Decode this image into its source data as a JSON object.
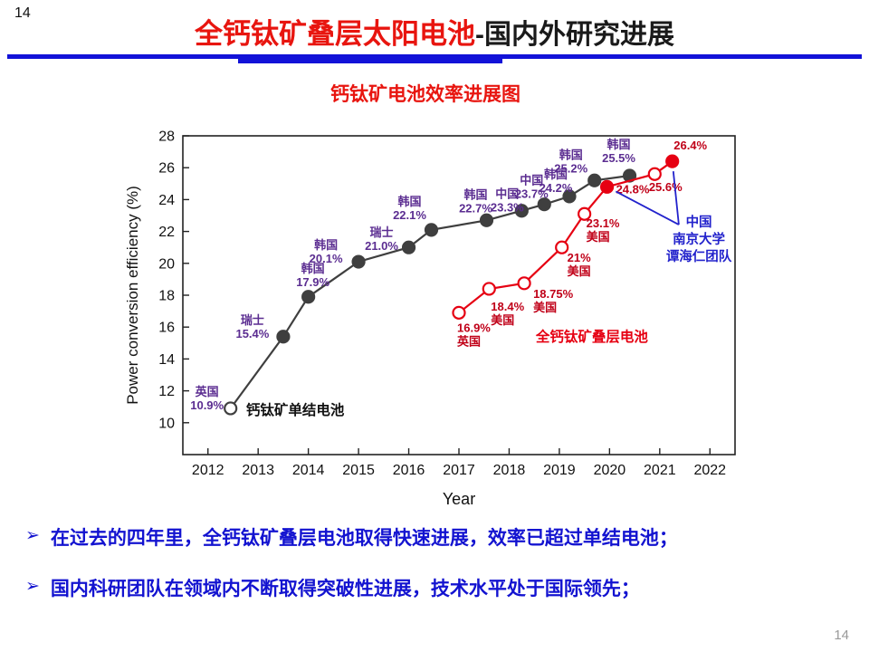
{
  "page": {
    "top_left_number": "14",
    "bottom_right_number": "14"
  },
  "header": {
    "title_red": "全钙钛矿叠层太阳电池",
    "title_dark": "-国内外研究进展",
    "title_red_color": "#e8150f",
    "accent_color": "#1212d8"
  },
  "chart_data": {
    "type": "line",
    "title": "钙钛矿电池效率进展图",
    "title_color": "#e8150f",
    "xlabel": "Year",
    "ylabel": "Power conversion efficiency (%)",
    "xlim": [
      2011.5,
      2022.5
    ],
    "ylim": [
      8,
      28
    ],
    "xticks": [
      2012,
      2013,
      2014,
      2015,
      2016,
      2017,
      2018,
      2019,
      2020,
      2021,
      2022
    ],
    "yticks": [
      10,
      12,
      14,
      16,
      18,
      20,
      22,
      24,
      26,
      28
    ],
    "grid": false,
    "series": [
      {
        "name": "钙钛矿单结电池",
        "line_color": "#3f3f3f",
        "label_color": "#5b2d91",
        "caption_color": "#111111",
        "caption": {
          "x": 2012.76,
          "y": 10.5
        },
        "points": [
          {
            "x": 2012.45,
            "y": 10.9,
            "open": true,
            "label": [
              "英国",
              "10.9%"
            ],
            "dx": -26,
            "dy": -14
          },
          {
            "x": 2013.5,
            "y": 15.4,
            "label": [
              "瑞士",
              "15.4%"
            ],
            "dx": -34,
            "dy": -14
          },
          {
            "x": 2014.0,
            "y": 17.9,
            "label": [
              "韩国",
              "17.9%"
            ],
            "dx": 5,
            "dy": -27
          },
          {
            "x": 2015.0,
            "y": 20.1,
            "label": [
              "韩国",
              "20.1%"
            ],
            "dx": -36,
            "dy": -14
          },
          {
            "x": 2016.0,
            "y": 21.0,
            "label": [
              "瑞士",
              "21.0%"
            ],
            "dx": -30,
            "dy": -12
          },
          {
            "x": 2016.45,
            "y": 22.1,
            "label": [
              "韩国",
              "22.1%"
            ],
            "dx": -24,
            "dy": -27
          },
          {
            "x": 2017.55,
            "y": 22.7,
            "label": [
              "韩国",
              "22.7%"
            ],
            "dx": -12,
            "dy": -24
          },
          {
            "x": 2018.25,
            "y": 23.3,
            "label": [
              "中国",
              "23.3%"
            ],
            "dx": -16,
            "dy": -14
          },
          {
            "x": 2018.7,
            "y": 23.7,
            "label": [
              "中国",
              "23.7%"
            ],
            "dx": -14,
            "dy": -22
          },
          {
            "x": 2019.2,
            "y": 24.2,
            "label": [
              "韩国",
              "24.2%"
            ],
            "dx": -15,
            "dy": -20
          },
          {
            "x": 2019.7,
            "y": 25.2,
            "label": [
              "韩国",
              "25.2%"
            ],
            "dx": -26,
            "dy": -24
          },
          {
            "x": 2020.4,
            "y": 25.5,
            "label": [
              "韩国",
              "25.5%"
            ],
            "dx": -12,
            "dy": -30
          }
        ]
      },
      {
        "name": "全钙钛矿叠层电池",
        "line_color": "#e60012",
        "label_color": "#c00018",
        "caption_color": "#e60012",
        "caption": {
          "x": 2018.53,
          "y": 15.1
        },
        "points": [
          {
            "x": 2017.0,
            "y": 16.9,
            "open": true,
            "label": [
              "16.9%",
              "英国"
            ],
            "dx": -2,
            "dy": 21,
            "anchor": "start"
          },
          {
            "x": 2017.6,
            "y": 18.4,
            "open": true,
            "label": [
              "18.4%",
              "美国"
            ],
            "dx": 2,
            "dy": 24,
            "anchor": "start"
          },
          {
            "x": 2018.3,
            "y": 18.75,
            "open": true,
            "label": [
              "18.75%",
              "美国"
            ],
            "dx": 10,
            "dy": 16,
            "anchor": "start"
          },
          {
            "x": 2019.05,
            "y": 21.0,
            "open": true,
            "label": [
              "21%",
              "美国"
            ],
            "dx": 6,
            "dy": 16,
            "anchor": "start"
          },
          {
            "x": 2019.5,
            "y": 23.1,
            "open": true,
            "label": [
              "23.1%",
              "美国"
            ],
            "dx": 2,
            "dy": 15,
            "anchor": "start"
          },
          {
            "x": 2019.95,
            "y": 24.8,
            "label": [
              "24.8%"
            ],
            "dx": 10,
            "dy": 7,
            "anchor": "start"
          },
          {
            "x": 2020.9,
            "y": 25.6,
            "open": true,
            "label": [
              "25.6%"
            ],
            "dx": 12,
            "dy": 19
          },
          {
            "x": 2021.25,
            "y": 26.4,
            "label": [
              "26.4%"
            ],
            "dx": 20,
            "dy": -13
          }
        ]
      }
    ],
    "annotation": {
      "x": 2021.78,
      "y": 22.32,
      "lines": [
        "中国",
        "南京大学",
        "谭海仁团队"
      ],
      "color": "#2222cc"
    },
    "callouts": [
      {
        "from": [
          2021.38,
          22.43
        ],
        "series": 1,
        "point": 7
      },
      {
        "from": [
          2021.38,
          22.43
        ],
        "series": 1,
        "point": 5
      }
    ]
  },
  "bullets": {
    "marker": "➢",
    "color": "#1313d0",
    "items": [
      "在过去的四年里，全钙钛矿叠层电池取得快速进展，效率已超过单结电池；",
      "国内科研团队在领域内不断取得突破性进展，技术水平处于国际领先；"
    ]
  }
}
